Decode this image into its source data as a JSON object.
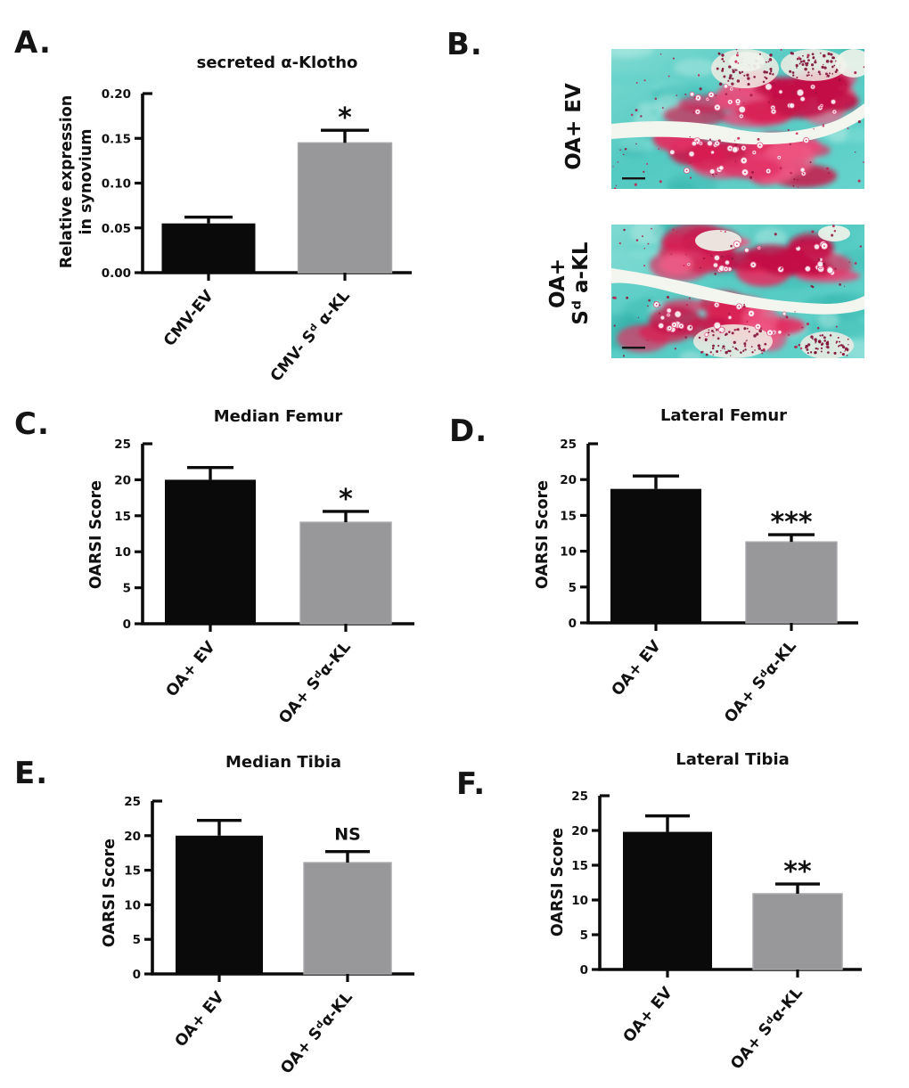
{
  "figure": {
    "panels": {
      "A": {
        "label": "A.",
        "ylabel_lines": "Relative expression\nin synovium"
      },
      "B": {
        "label": "B.",
        "captions": [
          {
            "lines": "OA+ EV"
          },
          {
            "lines": "OA+\nSᵈ a-KL"
          }
        ]
      },
      "C": {
        "label": "C."
      },
      "D": {
        "label": "D."
      },
      "E": {
        "label": "E."
      },
      "F": {
        "label": "F."
      }
    }
  },
  "colors": {
    "axis": "#0b0b0b",
    "bar_black": "#0a0a0a",
    "bar_gray": "#98989b",
    "stain_teal": "#52c9c1",
    "stain_red": "#e02a5c",
    "band_white": "#f3f6ee"
  },
  "chart_data": [
    {
      "panel": "A",
      "type": "bar",
      "title": "secreted α-Klotho",
      "ylabel": "Relative expression in synovium",
      "categories": [
        "CMV-EV",
        "CMV- Sᵈ α-KL"
      ],
      "values": [
        0.055,
        0.145
      ],
      "error_top": [
        0.062,
        0.159
      ],
      "significance": [
        "",
        "*"
      ],
      "bar_colors": [
        "#0a0a0a",
        "#98989b"
      ],
      "ylim": [
        0,
        0.2
      ],
      "yticks": [
        0,
        0.05,
        0.1,
        0.15,
        0.2
      ],
      "ytick_labels": [
        "0.00",
        "0.05",
        "0.10",
        "0.15",
        "0.20"
      ]
    },
    {
      "panel": "C",
      "type": "bar",
      "title": "Median Femur",
      "ylabel": "OARSI Score",
      "categories": [
        "OA+ EV",
        "OA+ Sᵈα-KL"
      ],
      "values": [
        20,
        14.1
      ],
      "error_top": [
        21.7,
        15.6
      ],
      "significance": [
        "",
        "*"
      ],
      "bar_colors": [
        "#0a0a0a",
        "#98989b"
      ],
      "ylim": [
        0,
        25
      ],
      "yticks": [
        0,
        5,
        10,
        15,
        20,
        25
      ],
      "ytick_labels": [
        "0",
        "5",
        "10",
        "15",
        "20",
        "25"
      ]
    },
    {
      "panel": "D",
      "type": "bar",
      "title": "Lateral Femur",
      "ylabel": "OARSI Score",
      "categories": [
        "OA+ EV",
        "OA+ Sᵈα-KL"
      ],
      "values": [
        18.7,
        11.3
      ],
      "error_top": [
        20.5,
        12.3
      ],
      "significance": [
        "",
        "***"
      ],
      "bar_colors": [
        "#0a0a0a",
        "#98989b"
      ],
      "ylim": [
        0,
        25
      ],
      "yticks": [
        0,
        5,
        10,
        15,
        20,
        25
      ],
      "ytick_labels": [
        "0",
        "5",
        "10",
        "15",
        "20",
        "25"
      ]
    },
    {
      "panel": "E",
      "type": "bar",
      "title": "Median Tibia",
      "ylabel": "OARSI Score",
      "categories": [
        "OA+ EV",
        "OA+ Sᵈα-KL"
      ],
      "values": [
        20,
        16.1
      ],
      "error_top": [
        22.2,
        17.7
      ],
      "significance": [
        "",
        "NS"
      ],
      "bar_colors": [
        "#0a0a0a",
        "#98989b"
      ],
      "ylim": [
        0,
        25
      ],
      "yticks": [
        0,
        5,
        10,
        15,
        20,
        25
      ],
      "ytick_labels": [
        "0",
        "5",
        "10",
        "15",
        "20",
        "25"
      ]
    },
    {
      "panel": "F",
      "type": "bar",
      "title": "Lateral Tibia",
      "ylabel": "OARSI Score",
      "categories": [
        "OA+ EV",
        "OA+ Sᵈα-KL"
      ],
      "values": [
        19.8,
        10.9
      ],
      "error_top": [
        22.1,
        12.3
      ],
      "significance": [
        "",
        "**"
      ],
      "bar_colors": [
        "#0a0a0a",
        "#98989b"
      ],
      "ylim": [
        0,
        25
      ],
      "yticks": [
        0,
        5,
        10,
        15,
        20,
        25
      ],
      "ytick_labels": [
        "0",
        "5",
        "10",
        "15",
        "20",
        "25"
      ]
    }
  ]
}
